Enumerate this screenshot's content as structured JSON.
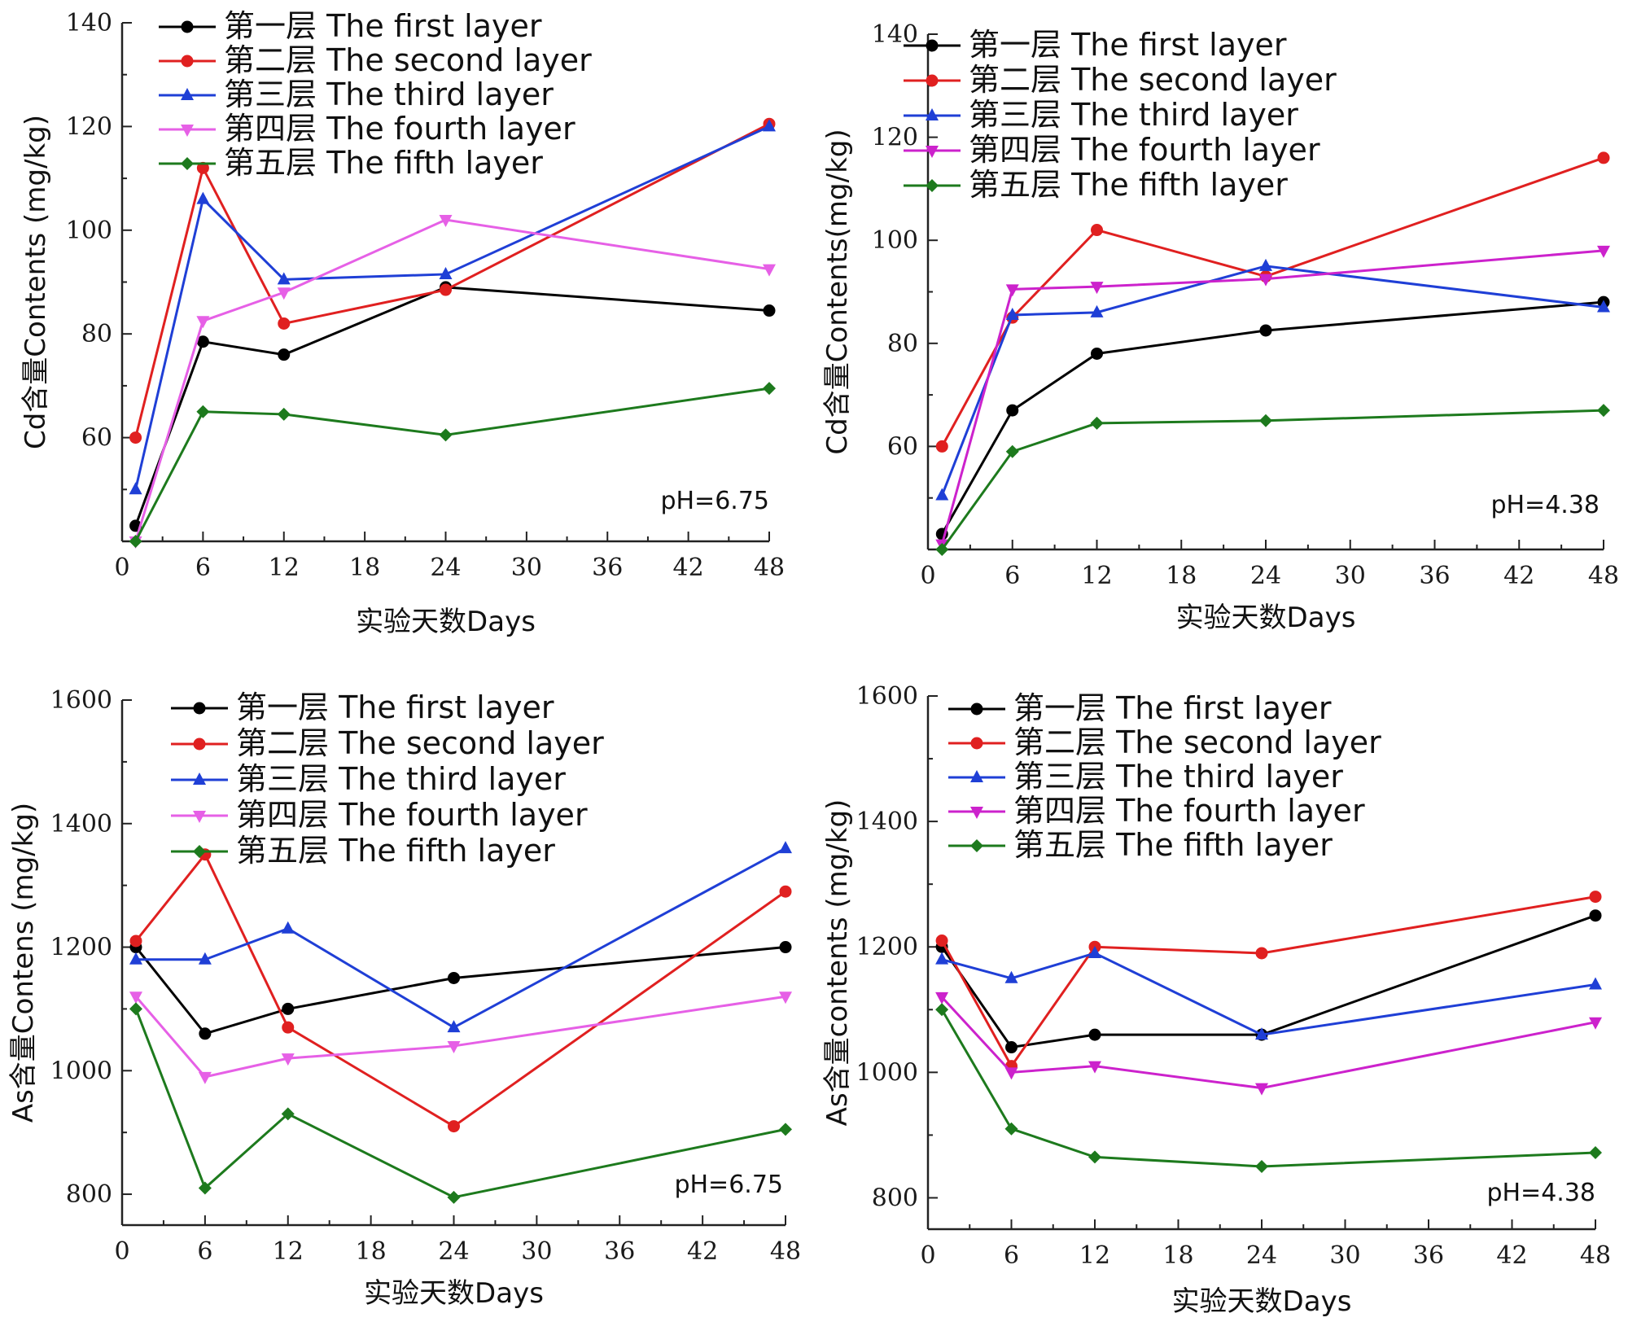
{
  "chart_data": [
    {
      "type": "line",
      "ylabel": "Cd含量Contents (mg/kg)",
      "xlabel": "实验天数Days",
      "annotation": "pH=6.75",
      "xlim": [
        0,
        48
      ],
      "ylim": [
        40,
        140
      ],
      "xticks": [
        0,
        6,
        12,
        18,
        24,
        30,
        36,
        42,
        48
      ],
      "yticks": [
        60,
        80,
        100,
        120,
        140
      ],
      "x": [
        1,
        6,
        12,
        24,
        48
      ],
      "series": [
        {
          "name": "第一层  The first layer",
          "color": "#000000",
          "marker": "circle",
          "values": [
            43,
            78.5,
            76,
            89,
            84.5
          ]
        },
        {
          "name": "第二层  The second layer",
          "color": "#e02020",
          "marker": "circle",
          "values": [
            60,
            112,
            82,
            88.5,
            120.5
          ]
        },
        {
          "name": "第三层  The third layer",
          "color": "#1f3fd6",
          "marker": "triangle",
          "values": [
            50,
            106,
            90.5,
            91.5,
            120
          ]
        },
        {
          "name": "第四层  The fourth layer",
          "color": "#e660e6",
          "marker": "tri-down",
          "values": [
            40,
            82.5,
            88,
            102,
            92.5
          ]
        },
        {
          "name": "第五层  The fifth layer",
          "color": "#1d7a1d",
          "marker": "diamond",
          "values": [
            40,
            65,
            64.5,
            60.5,
            69.5
          ]
        }
      ]
    },
    {
      "type": "line",
      "ylabel": "Cd含量Contents(mg/kg)",
      "xlabel": "实验天数Days",
      "annotation": "pH=4.38",
      "xlim": [
        0,
        48
      ],
      "ylim": [
        40,
        140
      ],
      "xticks": [
        0,
        6,
        12,
        18,
        24,
        30,
        36,
        42,
        48
      ],
      "yticks": [
        60,
        80,
        100,
        120,
        140
      ],
      "x": [
        1,
        6,
        12,
        24,
        48
      ],
      "series": [
        {
          "name": "第一层  The first layer",
          "color": "#000000",
          "marker": "circle",
          "values": [
            43,
            67,
            78,
            82.5,
            88
          ]
        },
        {
          "name": "第二层  The second layer",
          "color": "#e02020",
          "marker": "circle",
          "values": [
            60,
            85,
            102,
            93,
            116
          ]
        },
        {
          "name": "第三层  The third layer",
          "color": "#1f3fd6",
          "marker": "triangle",
          "values": [
            50.5,
            85.5,
            86,
            95,
            87
          ]
        },
        {
          "name": "第四层  The fourth layer",
          "color": "#cc22cc",
          "marker": "tri-down",
          "values": [
            41,
            90.5,
            91,
            92.5,
            98
          ]
        },
        {
          "name": "第五层  The fifth layer",
          "color": "#1d7a1d",
          "marker": "diamond",
          "values": [
            40,
            59,
            64.5,
            65,
            67
          ]
        }
      ]
    },
    {
      "type": "line",
      "ylabel": "As含量Contens (mg/kg)",
      "xlabel": "实验天数Days",
      "annotation": "pH=6.75",
      "xlim": [
        0,
        48
      ],
      "ylim": [
        750,
        1600
      ],
      "xticks": [
        0,
        6,
        12,
        18,
        24,
        30,
        36,
        42,
        48
      ],
      "yticks": [
        800,
        1000,
        1200,
        1400,
        1600
      ],
      "x": [
        1,
        6,
        12,
        24,
        48
      ],
      "series": [
        {
          "name": "第一层  The first layer",
          "color": "#000000",
          "marker": "circle",
          "values": [
            1200,
            1060,
            1100,
            1150,
            1200
          ]
        },
        {
          "name": "第二层  The second layer",
          "color": "#e02020",
          "marker": "circle",
          "values": [
            1210,
            1350,
            1070,
            910,
            1290
          ]
        },
        {
          "name": "第三层  The third layer",
          "color": "#1f3fd6",
          "marker": "triangle",
          "values": [
            1180,
            1180,
            1230,
            1070,
            1360
          ]
        },
        {
          "name": "第四层  The fourth layer",
          "color": "#e660e6",
          "marker": "tri-down",
          "values": [
            1120,
            990,
            1020,
            1040,
            1120
          ]
        },
        {
          "name": "第五层  The fifth layer",
          "color": "#1d7a1d",
          "marker": "diamond",
          "values": [
            1100,
            810,
            930,
            795,
            905
          ]
        }
      ]
    },
    {
      "type": "line",
      "ylabel": "As含量contents  (mg/kg)",
      "xlabel": "实验天数Days",
      "annotation": "pH=4.38",
      "xlim": [
        0,
        48
      ],
      "ylim": [
        750,
        1600
      ],
      "xticks": [
        0,
        6,
        12,
        18,
        24,
        30,
        36,
        42,
        48
      ],
      "yticks": [
        800,
        1000,
        1200,
        1400,
        1600
      ],
      "x": [
        1,
        6,
        12,
        24,
        48
      ],
      "series": [
        {
          "name": "第一层  The first layer",
          "color": "#000000",
          "marker": "circle",
          "values": [
            1200,
            1040,
            1060,
            1060,
            1250
          ]
        },
        {
          "name": "第二层  The second layer",
          "color": "#e02020",
          "marker": "circle",
          "values": [
            1210,
            1010,
            1200,
            1190,
            1280
          ]
        },
        {
          "name": "第三层  The third layer",
          "color": "#1f3fd6",
          "marker": "triangle",
          "values": [
            1180,
            1150,
            1190,
            1060,
            1140
          ]
        },
        {
          "name": "第四层  The fourth layer",
          "color": "#cc22cc",
          "marker": "tri-down",
          "values": [
            1120,
            1000,
            1010,
            975,
            1080
          ]
        },
        {
          "name": "第五层  The fifth layer",
          "color": "#1d7a1d",
          "marker": "diamond",
          "values": [
            1100,
            910,
            865,
            850,
            872
          ]
        }
      ]
    }
  ]
}
